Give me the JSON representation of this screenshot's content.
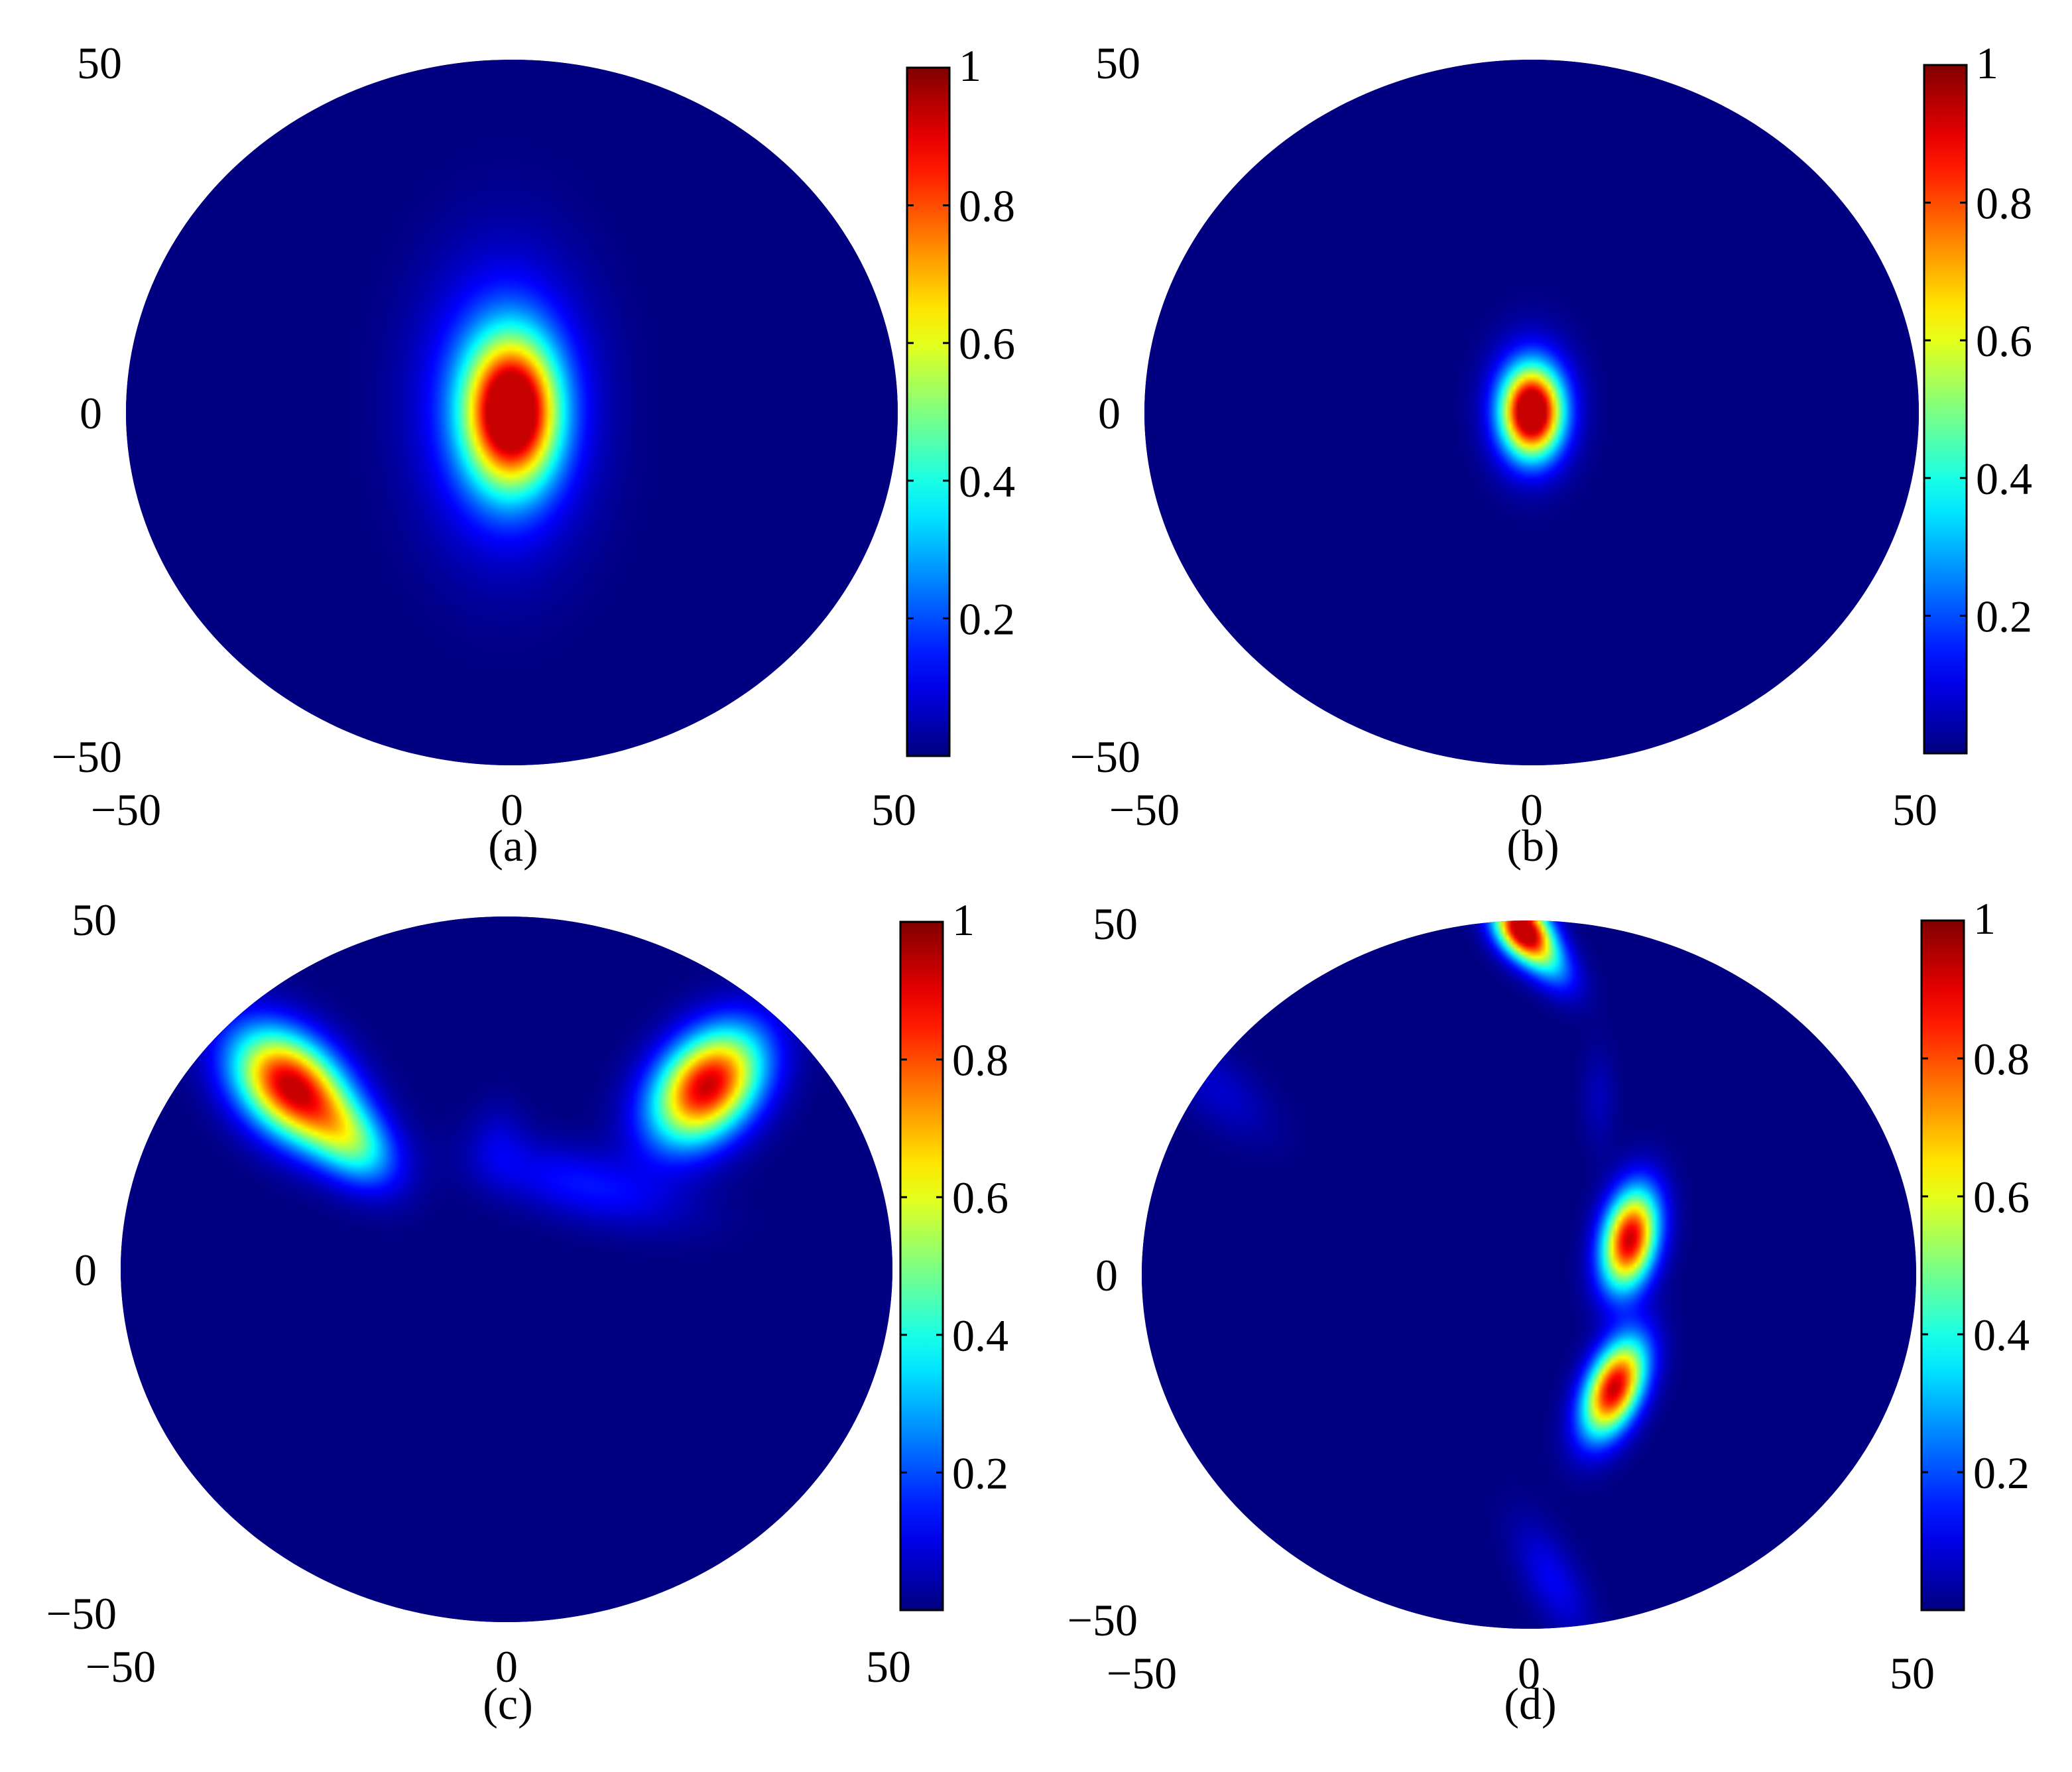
{
  "chart_data": [
    {
      "type": "heatmap",
      "panel_label": "(a)",
      "shape": "disk",
      "xlim": [
        -50,
        50
      ],
      "ylim": [
        -50,
        50
      ],
      "x_ticks": [
        "−50",
        "0",
        "50"
      ],
      "y_ticks": [
        "50",
        "0",
        "−50"
      ],
      "colorbar": {
        "range": [
          0,
          1
        ],
        "ticks": [
          "1",
          "0.8",
          "0.6",
          "0.4",
          "0.2"
        ],
        "colormap": "jet"
      },
      "peaks": [
        {
          "x": 0,
          "y": 0,
          "sx": 4,
          "sy": 7,
          "rot": 0,
          "amp": 1.0
        },
        {
          "x": -1,
          "y": 1,
          "sx": 7,
          "sy": 13,
          "rot": 0,
          "amp": 0.3
        }
      ]
    },
    {
      "type": "heatmap",
      "panel_label": "(b)",
      "shape": "disk",
      "xlim": [
        -50,
        50
      ],
      "ylim": [
        -50,
        50
      ],
      "x_ticks": [
        "−50",
        "0",
        "50"
      ],
      "y_ticks": [
        "50",
        "0",
        "−50"
      ],
      "colorbar": {
        "range": [
          0,
          1
        ],
        "ticks": [
          "1",
          "0.8",
          "0.6",
          "0.4",
          "0.2"
        ],
        "colormap": "jet"
      },
      "peaks": [
        {
          "x": 0,
          "y": 0,
          "sx": 2.6,
          "sy": 4.2,
          "rot": 0,
          "amp": 1.0
        },
        {
          "x": 0,
          "y": 1,
          "sx": 3.6,
          "sy": 6,
          "rot": 0,
          "amp": 0.25
        }
      ]
    },
    {
      "type": "heatmap",
      "panel_label": "(c)",
      "shape": "disk",
      "xlim": [
        -50,
        50
      ],
      "ylim": [
        -50,
        50
      ],
      "x_ticks": [
        "−50",
        "0",
        "50"
      ],
      "y_ticks": [
        "50",
        "0",
        "−50"
      ],
      "colorbar": {
        "range": [
          0,
          1
        ],
        "ticks": [
          "1",
          "0.8",
          "0.6",
          "0.4",
          "0.2"
        ],
        "colormap": "jet"
      },
      "peaks": [
        {
          "x": -28,
          "y": 26,
          "sx": 4.2,
          "sy": 6.2,
          "rot": 40,
          "amp": 1.0
        },
        {
          "x": 26,
          "y": 26,
          "sx": 4.2,
          "sy": 6.2,
          "rot": -35,
          "amp": 1.0
        },
        {
          "x": -20,
          "y": 18,
          "sx": 3.2,
          "sy": 5,
          "rot": 40,
          "amp": 0.42
        },
        {
          "x": 10,
          "y": 12,
          "sx": 9,
          "sy": 3.4,
          "rot": -15,
          "amp": 0.15
        },
        {
          "x": -1,
          "y": 18,
          "sx": 2.5,
          "sy": 4,
          "rot": 0,
          "amp": 0.07
        }
      ]
    },
    {
      "type": "heatmap",
      "panel_label": "(d)",
      "shape": "disk",
      "xlim": [
        -50,
        50
      ],
      "ylim": [
        -50,
        50
      ],
      "x_ticks": [
        "−50",
        "0",
        "50"
      ],
      "y_ticks": [
        "50",
        "0",
        "−50"
      ],
      "colorbar": {
        "range": [
          0,
          1
        ],
        "ticks": [
          "1",
          "0.8",
          "0.6",
          "0.4",
          "0.2"
        ],
        "colormap": "jet"
      },
      "peaks": [
        {
          "x": 13,
          "y": 5,
          "sx": 2.4,
          "sy": 5,
          "rot": -10,
          "amp": 1.0
        },
        {
          "x": 11,
          "y": -16,
          "sx": 2.4,
          "sy": 5,
          "rot": -20,
          "amp": 1.0
        },
        {
          "x": -1,
          "y": 49,
          "sx": 2.2,
          "sy": 3.2,
          "rot": 30,
          "amp": 1.0
        },
        {
          "x": 2,
          "y": 45,
          "sx": 2,
          "sy": 4,
          "rot": 35,
          "amp": 0.35
        },
        {
          "x": 3,
          "y": -43,
          "sx": 2.4,
          "sy": 6,
          "rot": 25,
          "amp": 0.12
        },
        {
          "x": -40,
          "y": 26,
          "sx": 3,
          "sy": 6,
          "rot": 45,
          "amp": 0.08
        },
        {
          "x": 9,
          "y": 25,
          "sx": 1.5,
          "sy": 5,
          "rot": 0,
          "amp": 0.06
        }
      ]
    }
  ]
}
